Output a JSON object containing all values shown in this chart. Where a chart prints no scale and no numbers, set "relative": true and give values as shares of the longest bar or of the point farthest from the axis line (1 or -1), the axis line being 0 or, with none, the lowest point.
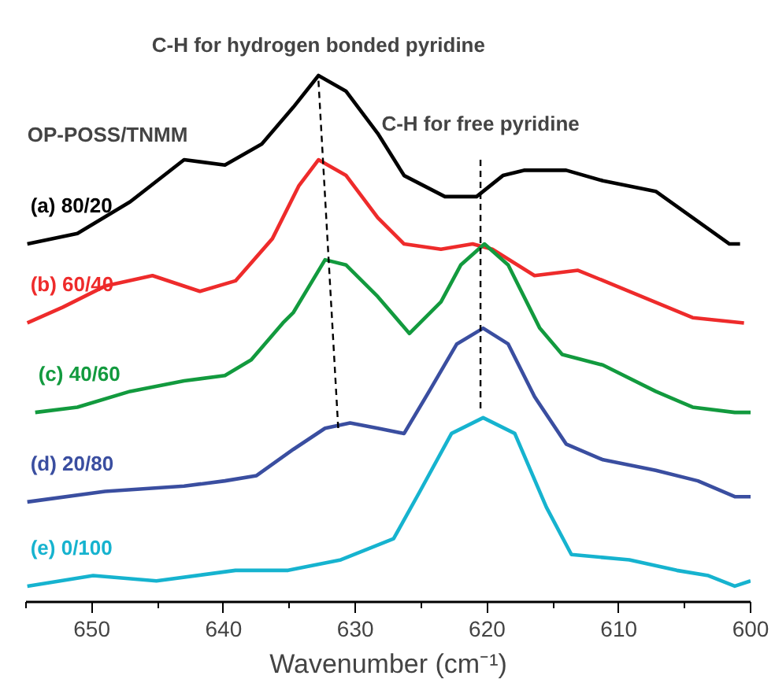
{
  "chart_data": {
    "type": "line",
    "relative": true,
    "xlabel": "Wavenumber (cm⁻¹)",
    "legend_title": "OP-POSS/TNMM",
    "xlim": [
      655,
      600
    ],
    "xticks": [
      650,
      640,
      630,
      620,
      610,
      600
    ],
    "grid": false,
    "line_style": "solid",
    "marker": "none",
    "annotations": [
      {
        "text": "C-H for hydrogen bonded pyridine",
        "x": 632.8,
        "y": 1.0
      },
      {
        "text": "C-H for free pyridine",
        "x": 620.5,
        "y": 0.85
      }
    ],
    "series": [
      {
        "name": "(a) 80/20",
        "color": "#000000",
        "x": [
          654.9,
          651.1,
          647.1,
          643.0,
          639.9,
          637.1,
          634.7,
          632.8,
          630.7,
          628.3,
          626.3,
          623.2,
          620.8,
          618.8,
          617.2,
          614.0,
          611.2,
          607.2,
          604.4,
          601.6,
          600.8
        ],
        "values": [
          0.68,
          0.7,
          0.76,
          0.84,
          0.83,
          0.87,
          0.94,
          1.0,
          0.97,
          0.89,
          0.81,
          0.77,
          0.77,
          0.81,
          0.82,
          0.82,
          0.8,
          0.78,
          0.73,
          0.68,
          0.68
        ]
      },
      {
        "name": "(b) 60/40",
        "color": "#ee2b2b",
        "x": [
          654.9,
          652.2,
          649.0,
          645.4,
          641.8,
          639.1,
          636.3,
          634.3,
          632.8,
          630.7,
          628.3,
          626.3,
          623.5,
          621.1,
          619.6,
          616.4,
          613.1,
          609.2,
          604.4,
          600.5
        ],
        "values": [
          0.53,
          0.56,
          0.6,
          0.62,
          0.59,
          0.61,
          0.69,
          0.79,
          0.84,
          0.81,
          0.73,
          0.68,
          0.67,
          0.68,
          0.67,
          0.62,
          0.63,
          0.59,
          0.54,
          0.53
        ]
      },
      {
        "name": "(c) 40/60",
        "color": "#129a3e",
        "x": [
          654.3,
          651.1,
          647.1,
          643.0,
          639.9,
          637.9,
          635.5,
          634.7,
          632.3,
          630.7,
          628.3,
          625.9,
          623.5,
          622.0,
          620.2,
          618.4,
          616.0,
          614.3,
          611.2,
          607.2,
          604.4,
          601.2,
          600.0
        ],
        "values": [
          0.36,
          0.37,
          0.4,
          0.42,
          0.43,
          0.46,
          0.53,
          0.55,
          0.65,
          0.64,
          0.58,
          0.51,
          0.57,
          0.64,
          0.68,
          0.64,
          0.52,
          0.47,
          0.45,
          0.4,
          0.37,
          0.36,
          0.36
        ]
      },
      {
        "name": "(d) 20/80",
        "color": "#3a4ea0",
        "x": [
          654.9,
          649.0,
          643.0,
          639.9,
          637.5,
          634.7,
          632.3,
          630.4,
          628.3,
          626.3,
          624.4,
          622.3,
          620.3,
          618.4,
          616.4,
          614.0,
          611.2,
          607.2,
          604.0,
          601.2,
          600.0
        ],
        "values": [
          0.19,
          0.21,
          0.22,
          0.23,
          0.24,
          0.29,
          0.33,
          0.34,
          0.33,
          0.32,
          0.4,
          0.49,
          0.52,
          0.49,
          0.39,
          0.3,
          0.27,
          0.25,
          0.23,
          0.2,
          0.2
        ]
      },
      {
        "name": "(e) 0/100",
        "color": "#16b3cf",
        "x": [
          654.9,
          649.9,
          645.1,
          639.1,
          635.1,
          631.1,
          627.1,
          625.1,
          622.7,
          620.3,
          617.9,
          615.5,
          613.6,
          609.2,
          605.6,
          603.2,
          601.2,
          600.0
        ],
        "values": [
          0.03,
          0.05,
          0.04,
          0.06,
          0.06,
          0.08,
          0.12,
          0.21,
          0.32,
          0.35,
          0.32,
          0.18,
          0.09,
          0.08,
          0.06,
          0.05,
          0.03,
          0.04
        ]
      },
      {
        "color": "#000000",
        "line_style": "dashed",
        "x": [
          632.8,
          631.3
        ],
        "values": [
          0.99,
          0.33
        ]
      },
      {
        "color": "#000000",
        "line_style": "dashed",
        "x": [
          620.5,
          620.5
        ],
        "values": [
          0.84,
          0.36
        ]
      }
    ]
  }
}
